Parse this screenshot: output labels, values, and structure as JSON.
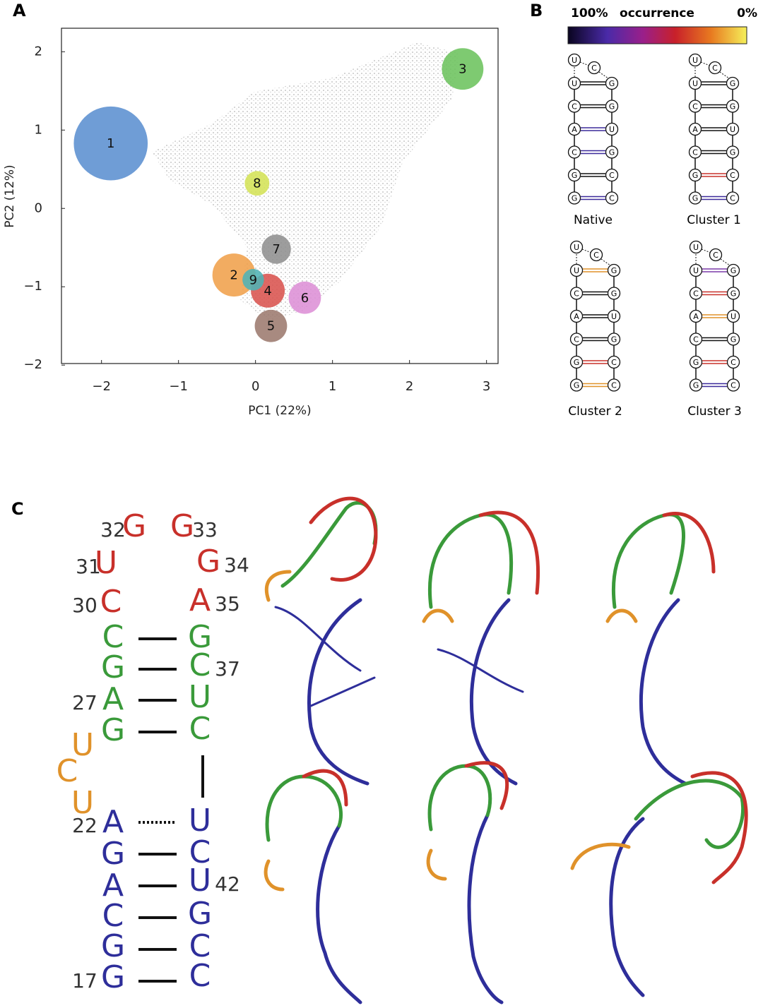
{
  "panels": {
    "a": "A",
    "b": "B",
    "c": "C"
  },
  "chart_data": {
    "type": "bubble",
    "xlabel": "PC1 (22%)",
    "ylabel": "PC2 (12%)",
    "xlim": [
      -2.52,
      3.15
    ],
    "ylim": [
      -1.98,
      2.3
    ],
    "xticks": [
      {
        "value": -2,
        "label": "−2"
      },
      {
        "value": -1,
        "label": "−1"
      },
      0,
      1,
      2,
      3
    ],
    "yticks": [
      {
        "value": -2,
        "label": "−2"
      },
      {
        "value": -1,
        "label": "−1"
      },
      0,
      1,
      2
    ],
    "labels": [
      "1",
      "2",
      "3",
      "4",
      "5",
      "6",
      "7",
      "8",
      "9"
    ],
    "x": [
      -1.88,
      -0.28,
      2.69,
      0.16,
      0.2,
      0.64,
      0.27,
      0.02,
      -0.03
    ],
    "y": [
      0.83,
      -0.85,
      1.78,
      -1.05,
      -1.5,
      -1.14,
      -0.52,
      0.32,
      -0.91
    ],
    "sizes": [
      0.48,
      0.28,
      0.27,
      0.22,
      0.21,
      0.21,
      0.19,
      0.16,
      0.14
    ],
    "colors": [
      "#5b8fd0",
      "#f0a04b",
      "#6cc35d",
      "#d9534f",
      "#9c7a6e",
      "#dd8fd6",
      "#8f8f8f",
      "#d4e256",
      "#4fb3b5"
    ]
  },
  "colorbar": {
    "left": "100%",
    "title": "occurrence",
    "right": "0%"
  },
  "structures": [
    {
      "name": "Native",
      "loop": [
        "U",
        "C"
      ],
      "left": [
        "U",
        "C",
        "A",
        "C",
        "G",
        "G"
      ],
      "right": [
        "G",
        "G",
        "U",
        "G",
        "C",
        "C"
      ]
    },
    {
      "name": "Cluster 1",
      "loop": [
        "U",
        "C"
      ],
      "left": [
        "U",
        "C",
        "A",
        "C",
        "G",
        "G"
      ],
      "right": [
        "G",
        "G",
        "U",
        "G",
        "C",
        "C"
      ]
    },
    {
      "name": "Cluster 2",
      "loop": [
        "U",
        "C"
      ],
      "left": [
        "U",
        "C",
        "A",
        "C",
        "G",
        "G"
      ],
      "right": [
        "G",
        "G",
        "U",
        "G",
        "C",
        "C"
      ]
    },
    {
      "name": "Cluster 3",
      "loop": [
        "U",
        "C"
      ],
      "left": [
        "U",
        "C",
        "A",
        "C",
        "G",
        "G"
      ],
      "right": [
        "G",
        "G",
        "U",
        "G",
        "C",
        "C"
      ]
    }
  ],
  "sequence": {
    "left": [
      {
        "base": "G",
        "number": "32",
        "color": "#c8302a"
      },
      {
        "base": "U",
        "number": "31",
        "color": "#c8302a"
      },
      {
        "base": "C",
        "number": "30",
        "color": "#c8302a"
      },
      {
        "base": "C",
        "color": "#3a9a3a"
      },
      {
        "base": "G",
        "color": "#3a9a3a"
      },
      {
        "base": "A",
        "number": "27",
        "color": "#3a9a3a"
      },
      {
        "base": "G",
        "color": "#3a9a3a"
      },
      {
        "base": "U",
        "color": "#e0922a"
      },
      {
        "base": "C",
        "color": "#e0922a"
      },
      {
        "base": "U",
        "color": "#e0922a"
      },
      {
        "base": "A",
        "number": "22",
        "color": "#2e2e9a"
      },
      {
        "base": "G",
        "color": "#2e2e9a"
      },
      {
        "base": "A",
        "color": "#2e2e9a"
      },
      {
        "base": "C",
        "color": "#2e2e9a"
      },
      {
        "base": "G",
        "color": "#2e2e9a"
      },
      {
        "base": "G",
        "number": "17",
        "color": "#2e2e9a"
      }
    ],
    "right": [
      {
        "base": "G",
        "number": "33",
        "color": "#c8302a"
      },
      {
        "base": "G",
        "number": "34",
        "color": "#c8302a"
      },
      {
        "base": "A",
        "number": "35",
        "color": "#c8302a"
      },
      {
        "base": "G",
        "color": "#3a9a3a"
      },
      {
        "base": "C",
        "number": "37",
        "color": "#3a9a3a"
      },
      {
        "base": "U",
        "color": "#3a9a3a"
      },
      {
        "base": "C",
        "color": "#3a9a3a"
      },
      {
        "base": "U",
        "color": "#2e2e9a"
      },
      {
        "base": "C",
        "color": "#2e2e9a"
      },
      {
        "base": "U",
        "number": "42",
        "color": "#2e2e9a"
      },
      {
        "base": "G",
        "color": "#2e2e9a"
      },
      {
        "base": "C",
        "color": "#2e2e9a"
      },
      {
        "base": "C",
        "color": "#2e2e9a"
      }
    ]
  }
}
